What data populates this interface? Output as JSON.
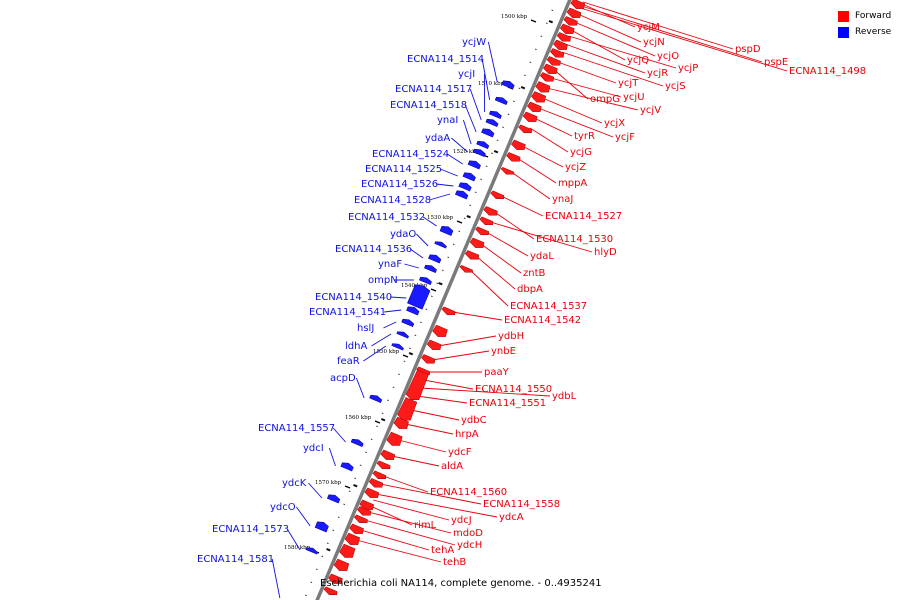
{
  "legend": {
    "forward_label": "Forward",
    "reverse_label": "Reverse",
    "forward_color": "#ff0000",
    "reverse_color": "#0000ff"
  },
  "caption": "Escherichia coli NA114, complete genome. - 0..4935241",
  "ticks": [
    "1500 kbp",
    "1510 kbp",
    "1520 kbp",
    "1530 kbp",
    "1540 kbp",
    "1550 kbp",
    "1560 kbp",
    "1570 kbp",
    "1580 kbp"
  ],
  "forward_genes": [
    "ycjM",
    "ycjN",
    "ycjO",
    "ycjQ",
    "ycjP",
    "ycjR",
    "ycjS",
    "ycjT",
    "ompG",
    "ycjU",
    "ycjV",
    "ycjX",
    "ycjF",
    "tyrR",
    "ycjG",
    "ycjZ",
    "mppA",
    "ynaJ",
    "ECNA114_1527",
    "ECNA114_1530",
    "hlyD",
    "ydaL",
    "zntB",
    "dbpA",
    "ECNA114_1537",
    "ECNA114_1542",
    "ydbH",
    "ynbE",
    "paaY",
    "ECNA114_1550",
    "ydbL",
    "ECNA114_1551",
    "ydbC",
    "hrpA",
    "ydcF",
    "aldA",
    "ECNA114_1560",
    "ECNA114_1558",
    "ydcA",
    "rimL",
    "ydcJ",
    "mdoD",
    "ydcH",
    "tehA",
    "tehB",
    "pspD",
    "pspE",
    "ECNA114_1498"
  ],
  "reverse_genes": [
    "ycjW",
    "ECNA114_1514",
    "ycjI",
    "ECNA114_1517",
    "ECNA114_1518",
    "ynaI",
    "ydaA",
    "ECNA114_1524",
    "ECNA114_1525",
    "ECNA114_1526",
    "ECNA114_1528",
    "ECNA114_1532",
    "ydaO",
    "ECNA114_1536",
    "ynaF",
    "ompN",
    "ECNA114_1540",
    "ECNA114_1541",
    "hslJ",
    "ldhA",
    "feaR",
    "acpD",
    "ECNA114_1557",
    "ydcI",
    "ydcK",
    "ydcO",
    "ECNA114_1573",
    "ECNA114_1581"
  ]
}
